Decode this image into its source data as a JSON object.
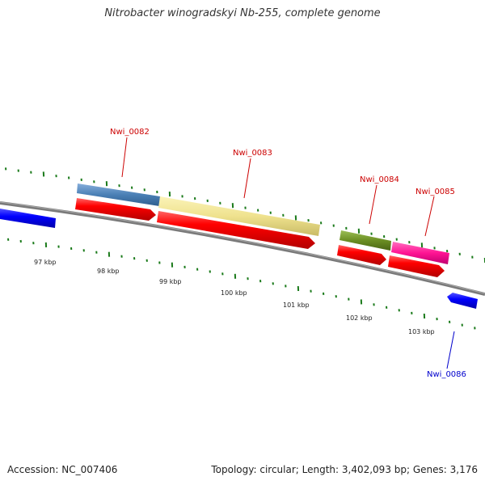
{
  "title": "Nitrobacter winogradskyi Nb-255, complete genome",
  "footer": {
    "accession": "Accession: NC_007406",
    "info": "Topology: circular; Length: 3,402,093 bp; Genes: 3,176"
  },
  "kbp_labels": [
    "97 kbp",
    "98 kbp",
    "99 kbp",
    "100 kbp",
    "101 kbp",
    "102 kbp",
    "103 kbp"
  ],
  "genes": [
    {
      "name": "Nwi_0082",
      "color": "#cc0000"
    },
    {
      "name": "Nwi_0083",
      "color": "#cc0000"
    },
    {
      "name": "Nwi_0084",
      "color": "#cc0000"
    },
    {
      "name": "Nwi_0085",
      "color": "#cc0000"
    },
    {
      "name": "Nwi_0086",
      "color": "#0000cc"
    }
  ],
  "colors": {
    "backbone": "#7a7a7a",
    "forward_gene": "#ff0000",
    "reverse_gene": "#0000ff",
    "tick": "#1a7a1a",
    "feature_blue": "#4a7fb5",
    "feature_yellow": "#f0e68c",
    "feature_green": "#6b8e23",
    "feature_pink": "#ff1493"
  }
}
